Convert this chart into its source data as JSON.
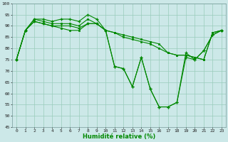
{
  "xlabel": "Humidité relative (%)",
  "ylim": [
    45,
    100
  ],
  "xlim": [
    -0.5,
    23.5
  ],
  "yticks": [
    45,
    50,
    55,
    60,
    65,
    70,
    75,
    80,
    85,
    90,
    95,
    100
  ],
  "xticks": [
    0,
    1,
    2,
    3,
    4,
    5,
    6,
    7,
    8,
    9,
    10,
    11,
    12,
    13,
    14,
    15,
    16,
    17,
    18,
    19,
    20,
    21,
    22,
    23
  ],
  "bg_color": "#cce8e8",
  "grid_color": "#99ccbb",
  "line_color": "#008800",
  "series1": [
    75,
    88,
    93,
    93,
    92,
    93,
    93,
    92,
    95,
    93,
    88,
    72,
    71,
    63,
    76,
    62,
    54,
    54,
    56,
    76,
    75,
    79,
    86,
    88
  ],
  "series2": [
    75,
    88,
    92,
    91,
    90,
    90,
    90,
    89,
    91,
    91,
    88,
    72,
    71,
    63,
    76,
    62,
    54,
    54,
    56,
    78,
    75,
    79,
    86,
    88
  ],
  "series3": [
    75,
    88,
    93,
    92,
    91,
    91,
    91,
    90,
    93,
    91,
    88,
    87,
    86,
    85,
    84,
    83,
    82,
    78,
    77,
    77,
    76,
    75,
    87,
    88
  ],
  "series4": [
    75,
    88,
    92,
    91,
    90,
    89,
    88,
    88,
    91,
    91,
    88,
    87,
    85,
    84,
    83,
    82,
    80,
    78,
    77,
    77,
    76,
    75,
    87,
    88
  ]
}
